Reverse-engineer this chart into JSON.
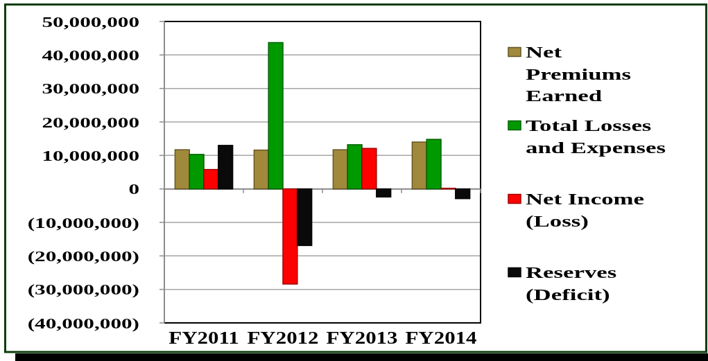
{
  "chart_data": {
    "type": "bar",
    "categories": [
      "FY2011",
      "FY2012",
      "FY2013",
      "FY2014"
    ],
    "series": [
      {
        "name": "Net Premiums Earned",
        "color": "#a0893a",
        "values": [
          11700000,
          11600000,
          11700000,
          14000000
        ]
      },
      {
        "name": "Total Losses and Expenses",
        "color": "#009900",
        "values": [
          10300000,
          43700000,
          13200000,
          14800000
        ]
      },
      {
        "name": "Net Income (Loss)",
        "color": "#ff0000",
        "values": [
          5800000,
          -28400000,
          12100000,
          200000
        ]
      },
      {
        "name": "Reserves (Deficit)",
        "color": "#0a0a0a",
        "values": [
          13000000,
          -16900000,
          -2400000,
          -2900000
        ]
      }
    ],
    "ylim": [
      -40000000,
      50000000
    ],
    "yticks": [
      {
        "value": -40000000,
        "label": "(40,000,000)"
      },
      {
        "value": -30000000,
        "label": "(30,000,000)"
      },
      {
        "value": -20000000,
        "label": "(20,000,000)"
      },
      {
        "value": -10000000,
        "label": "(10,000,000)"
      },
      0,
      {
        "value": 10000000,
        "label": "10,000,000"
      },
      {
        "value": 20000000,
        "label": "20,000,000"
      },
      {
        "value": 30000000,
        "label": "30,000,000"
      },
      {
        "value": 40000000,
        "label": "40,000,000"
      },
      {
        "value": 50000000,
        "label": "50,000,000"
      }
    ],
    "grid": "y",
    "legend": "right"
  }
}
